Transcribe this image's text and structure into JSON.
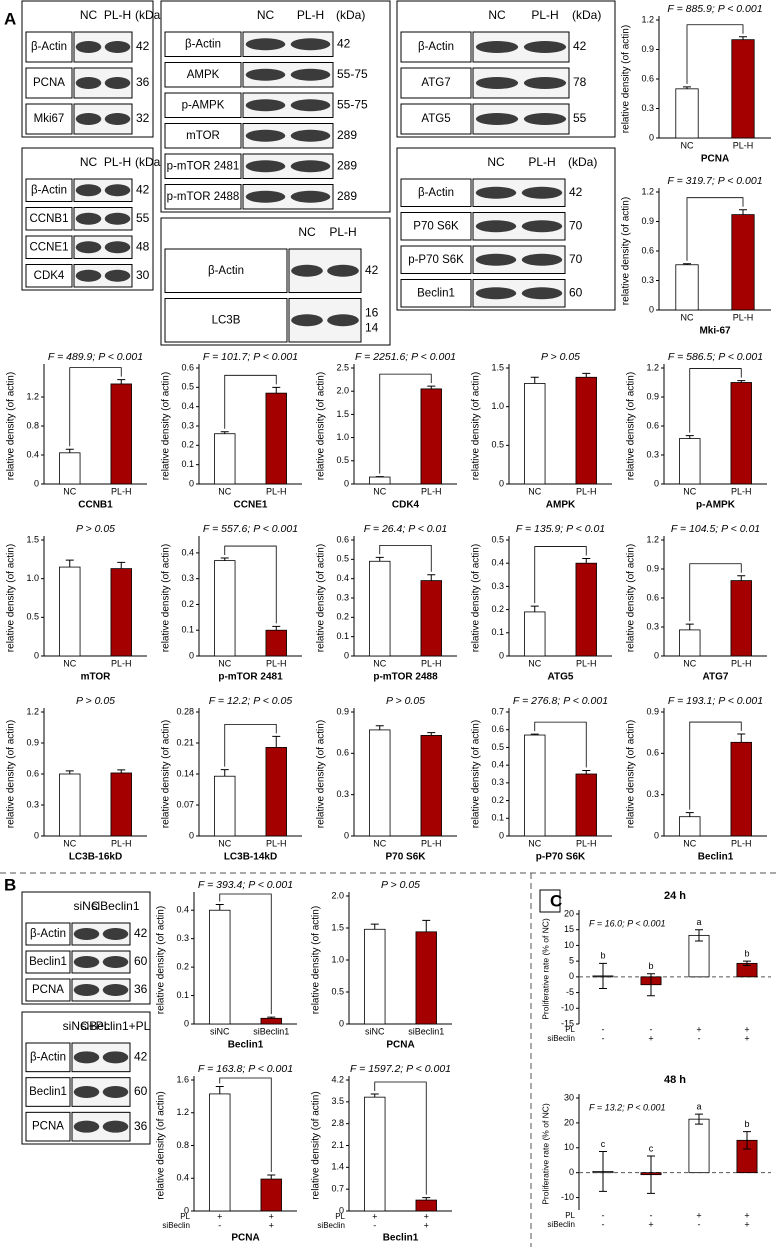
{
  "panels": [
    "A",
    "B",
    "C"
  ],
  "blots": [
    {
      "lanes": [
        "NC",
        "PL-H"
      ],
      "unit": "(kDa)",
      "rows": [
        {
          "label": "β-Actin",
          "kda": "42"
        },
        {
          "label": "PCNA",
          "kda": "36"
        },
        {
          "label": "Mki67",
          "kda": "32"
        }
      ]
    },
    {
      "lanes": [
        "NC",
        "PL-H"
      ],
      "unit": "(kDa)",
      "rows": [
        {
          "label": "β-Actin",
          "kda": "42"
        },
        {
          "label": "CCNB1",
          "kda": "55"
        },
        {
          "label": "CCNE1",
          "kda": "48"
        },
        {
          "label": "CDK4",
          "kda": "30"
        }
      ]
    },
    {
      "lanes": [
        "NC",
        "PL-H"
      ],
      "unit": "(kDa)",
      "rows": [
        {
          "label": "β-Actin",
          "kda": "42"
        },
        {
          "label": "AMPK",
          "kda": "55-75"
        },
        {
          "label": "p-AMPK",
          "kda": "55-75"
        },
        {
          "label": "mTOR",
          "kda": "289"
        },
        {
          "label": "p-mTOR 2481",
          "kda": "289"
        },
        {
          "label": "p-mTOR 2488",
          "kda": "289"
        }
      ]
    },
    {
      "lanes": [
        "NC",
        "PL-H"
      ],
      "rows": [
        {
          "label": "β-Actin",
          "kda": "42"
        },
        {
          "label": "LC3B",
          "kda": "16",
          "kda2": "14"
        }
      ]
    },
    {
      "lanes": [
        "NC",
        "PL-H"
      ],
      "unit": "(kDa)",
      "rows": [
        {
          "label": "β-Actin",
          "kda": "42"
        },
        {
          "label": "ATG7",
          "kda": "78"
        },
        {
          "label": "ATG5",
          "kda": "55"
        }
      ]
    },
    {
      "lanes": [
        "NC",
        "PL-H"
      ],
      "unit": "(kDa)",
      "rows": [
        {
          "label": "β-Actin",
          "kda": "42"
        },
        {
          "label": "P70 S6K",
          "kda": "70"
        },
        {
          "label": "p-P70 S6K",
          "kda": "70"
        },
        {
          "label": "Beclin1",
          "kda": "60"
        }
      ]
    },
    {
      "lanes": [
        "siNC",
        "siBeclin1"
      ],
      "rows": [
        {
          "label": "β-Actin",
          "kda": "42"
        },
        {
          "label": "Beclin1",
          "kda": "60"
        },
        {
          "label": "PCNA",
          "kda": "36"
        }
      ]
    },
    {
      "lanes": [
        "siNC+PL",
        "siBeclin1+PL"
      ],
      "rows": [
        {
          "label": "β-Actin",
          "kda": "42"
        },
        {
          "label": "Beclin1",
          "kda": "60"
        },
        {
          "label": "PCNA",
          "kda": "36"
        }
      ]
    }
  ],
  "chart_data": [
    {
      "type": "bar",
      "annotation": "F = 885.9; P < 0.001",
      "xlabel": "PCNA",
      "ylabel": "relative density (of actin)",
      "categories": [
        "NC",
        "PL-H"
      ],
      "values": [
        0.5,
        1.0
      ],
      "errors": [
        0.02,
        0.03
      ],
      "colors": [
        "#ffffff",
        "#a50000"
      ],
      "ylim": [
        0,
        1.2
      ],
      "yticks": [
        0,
        0.3,
        0.6,
        0.9,
        1.2
      ],
      "bracket": true
    },
    {
      "type": "bar",
      "annotation": "F = 319.7; P < 0.001",
      "xlabel": "Mki-67",
      "ylabel": "relative density (of actin)",
      "categories": [
        "NC",
        "PL-H"
      ],
      "values": [
        0.46,
        0.97
      ],
      "errors": [
        0.01,
        0.05
      ],
      "colors": [
        "#ffffff",
        "#a50000"
      ],
      "ylim": [
        0,
        1.2
      ],
      "yticks": [
        0,
        0.3,
        0.6,
        0.9,
        1.2
      ],
      "bracket": true
    },
    {
      "type": "bar",
      "annotation": "F = 489.9; P < 0.001",
      "xlabel": "CCNB1",
      "ylabel": "relative density (of actin)",
      "categories": [
        "NC",
        "PL-H"
      ],
      "values": [
        0.43,
        1.38
      ],
      "errors": [
        0.05,
        0.06
      ],
      "colors": [
        "#ffffff",
        "#a50000"
      ],
      "ylim": [
        0,
        1.6
      ],
      "yticks": [
        0,
        0.4,
        0.8,
        1.2
      ],
      "bracket": true
    },
    {
      "type": "bar",
      "annotation": "F = 101.7; P < 0.001",
      "xlabel": "CCNE1",
      "ylabel": "relative density (of actin)",
      "categories": [
        "NC",
        "PL-H"
      ],
      "values": [
        0.26,
        0.47
      ],
      "errors": [
        0.01,
        0.03
      ],
      "colors": [
        "#ffffff",
        "#a50000"
      ],
      "ylim": [
        0,
        0.6
      ],
      "yticks": [
        0,
        0.1,
        0.2,
        0.3,
        0.4,
        0.5,
        0.6
      ],
      "bracket": true
    },
    {
      "type": "bar",
      "annotation": "F = 2251.6; P < 0.001",
      "xlabel": "CDK4",
      "ylabel": "relative density (of actin)",
      "categories": [
        "NC",
        "PL-H"
      ],
      "values": [
        0.15,
        2.05
      ],
      "errors": [
        0.01,
        0.06
      ],
      "colors": [
        "#ffffff",
        "#a50000"
      ],
      "ylim": [
        0,
        2.5
      ],
      "yticks": [
        0,
        0.5,
        {
          "value": 1,
          "label": "1.0"
        },
        1.5,
        {
          "value": 2,
          "label": "2.0"
        },
        2.5
      ],
      "bracket": true
    },
    {
      "type": "bar",
      "annotation": "P > 0.05",
      "xlabel": "AMPK",
      "ylabel": "relative density (of actin)",
      "categories": [
        "NC",
        "PL-H"
      ],
      "values": [
        1.3,
        1.38
      ],
      "errors": [
        0.08,
        0.05
      ],
      "colors": [
        "#ffffff",
        "#a50000"
      ],
      "ylim": [
        0,
        1.5
      ],
      "yticks": [
        0,
        0.5,
        {
          "value": 1,
          "label": "1.0"
        },
        1.5
      ],
      "bracket": false
    },
    {
      "type": "bar",
      "annotation": "F = 586.5; P < 0.001",
      "xlabel": "p-AMPK",
      "ylabel": "relative density (of actin)",
      "categories": [
        "NC",
        "PL-H"
      ],
      "values": [
        0.47,
        1.05
      ],
      "errors": [
        0.03,
        0.02
      ],
      "colors": [
        "#ffffff",
        "#a50000"
      ],
      "ylim": [
        0,
        1.2
      ],
      "yticks": [
        0,
        0.3,
        0.6,
        0.9,
        1.2
      ],
      "bracket": true
    },
    {
      "type": "bar",
      "annotation": "P > 0.05",
      "xlabel": "mTOR",
      "ylabel": "relative density (of actin)",
      "categories": [
        "NC",
        "PL-H"
      ],
      "values": [
        1.15,
        1.13
      ],
      "errors": [
        0.09,
        0.08
      ],
      "colors": [
        "#ffffff",
        "#a50000"
      ],
      "ylim": [
        0,
        1.5
      ],
      "yticks": [
        0,
        0.5,
        {
          "value": 1,
          "label": "1.0"
        },
        1.5
      ],
      "bracket": false
    },
    {
      "type": "bar",
      "annotation": "F = 557.6; P < 0.001",
      "xlabel": "p-mTOR 2481",
      "ylabel": "relative density (of actin)",
      "categories": [
        "NC",
        "PL-H"
      ],
      "values": [
        0.37,
        0.1
      ],
      "errors": [
        0.01,
        0.015
      ],
      "colors": [
        "#ffffff",
        "#a50000"
      ],
      "ylim": [
        0,
        0.45
      ],
      "yticks": [
        0,
        0.1,
        0.2,
        0.3,
        0.4
      ],
      "bracket": true
    },
    {
      "type": "bar",
      "annotation": "F = 26.4; P < 0.01",
      "xlabel": "p-mTOR 2488",
      "ylabel": "relative density (of actin)",
      "categories": [
        "NC",
        "PL-H"
      ],
      "values": [
        0.49,
        0.39
      ],
      "errors": [
        0.02,
        0.03
      ],
      "colors": [
        "#ffffff",
        "#a50000"
      ],
      "ylim": [
        0,
        0.6
      ],
      "yticks": [
        0,
        0.1,
        0.2,
        0.3,
        0.4,
        0.5,
        0.6
      ],
      "bracket": true
    },
    {
      "type": "bar",
      "annotation": "F = 135.9; P < 0.01",
      "xlabel": "ATG5",
      "ylabel": "relative density (of actin)",
      "categories": [
        "NC",
        "PL-H"
      ],
      "values": [
        0.19,
        0.4
      ],
      "errors": [
        0.025,
        0.02
      ],
      "colors": [
        "#ffffff",
        "#a50000"
      ],
      "ylim": [
        0,
        0.5
      ],
      "yticks": [
        0,
        0.1,
        0.2,
        0.3,
        0.4,
        0.5
      ],
      "bracket": true
    },
    {
      "type": "bar",
      "annotation": "F = 104.5; P < 0.01",
      "xlabel": "ATG7",
      "ylabel": "relative density (of actin)",
      "categories": [
        "NC",
        "PL-H"
      ],
      "values": [
        0.27,
        0.78
      ],
      "errors": [
        0.06,
        0.05
      ],
      "colors": [
        "#ffffff",
        "#a50000"
      ],
      "ylim": [
        0,
        1.2
      ],
      "yticks": [
        0,
        0.3,
        0.6,
        0.9,
        1.2
      ],
      "bracket": true
    },
    {
      "type": "bar",
      "annotation": "P > 0.05",
      "xlabel": "LC3B-16kD",
      "ylabel": "relative density (of actin)",
      "categories": [
        "NC",
        "PL-H"
      ],
      "values": [
        0.6,
        0.61
      ],
      "errors": [
        0.03,
        0.03
      ],
      "colors": [
        "#ffffff",
        "#a50000"
      ],
      "ylim": [
        0,
        1.2
      ],
      "yticks": [
        0,
        0.3,
        0.6,
        0.9,
        1.2
      ],
      "bracket": false
    },
    {
      "type": "bar",
      "annotation": "F = 12.2; P < 0.05",
      "xlabel": "LC3B-14kD",
      "ylabel": "relative density (of actin)",
      "categories": [
        "NC",
        "PL-H"
      ],
      "values": [
        0.135,
        0.2
      ],
      "errors": [
        0.015,
        0.025
      ],
      "colors": [
        "#ffffff",
        "#a50000"
      ],
      "ylim": [
        0,
        0.28
      ],
      "yticks": [
        0,
        0.07,
        0.14,
        0.21,
        0.28
      ],
      "bracket": true
    },
    {
      "type": "bar",
      "annotation": "P > 0.05",
      "xlabel": "P70 S6K",
      "ylabel": "relative density (of actin)",
      "categories": [
        "NC",
        "PL-H"
      ],
      "values": [
        0.77,
        0.73
      ],
      "errors": [
        0.03,
        0.02
      ],
      "colors": [
        "#ffffff",
        "#a50000"
      ],
      "ylim": [
        0,
        0.9
      ],
      "yticks": [
        0,
        0.3,
        0.6,
        0.9
      ],
      "bracket": false
    },
    {
      "type": "bar",
      "annotation": "F = 276.8; P < 0.001",
      "xlabel": "p-P70 S6K",
      "ylabel": "relative density (of actin)",
      "categories": [
        "NC",
        "PL-H"
      ],
      "values": [
        0.57,
        0.35
      ],
      "errors": [
        0.005,
        0.02
      ],
      "colors": [
        "#ffffff",
        "#a50000"
      ],
      "ylim": [
        0,
        0.7
      ],
      "yticks": [
        0,
        0.1,
        0.2,
        0.3,
        0.4,
        0.5,
        0.6,
        0.7
      ],
      "bracket": true
    },
    {
      "type": "bar",
      "annotation": "F = 193.1; P < 0.001",
      "xlabel": "Beclin1",
      "ylabel": "relative density (of actin)",
      "categories": [
        "NC",
        "PL-H"
      ],
      "values": [
        0.14,
        0.68
      ],
      "errors": [
        0.03,
        0.06
      ],
      "colors": [
        "#ffffff",
        "#a50000"
      ],
      "ylim": [
        0,
        0.9
      ],
      "yticks": [
        0,
        0.3,
        0.6,
        0.9
      ],
      "bracket": true
    },
    {
      "type": "bar",
      "annotation": "F = 393.4; P < 0.001",
      "xlabel": "Beclin1",
      "ylabel": "relative density (of actin)",
      "categories": [
        "siNC",
        "siBeclin1"
      ],
      "values": [
        0.4,
        0.02
      ],
      "errors": [
        0.02,
        0.004
      ],
      "colors": [
        "#ffffff",
        "#a50000"
      ],
      "ylim": [
        0,
        0.45
      ],
      "yticks": [
        0,
        0.1,
        0.2,
        0.3,
        0.4
      ],
      "bracket": true
    },
    {
      "type": "bar",
      "annotation": "P > 0.05",
      "xlabel": "PCNA",
      "ylabel": "relative density (of actin)",
      "categories": [
        "siNC",
        "siBeclin1"
      ],
      "values": [
        1.48,
        1.44
      ],
      "errors": [
        0.08,
        0.18
      ],
      "colors": [
        "#ffffff",
        "#a50000"
      ],
      "ylim": [
        0,
        2.0
      ],
      "yticks": [
        0,
        0.5,
        {
          "value": 1,
          "label": "1.0"
        },
        1.5,
        {
          "value": 2,
          "label": "2.0"
        }
      ],
      "bracket": false
    },
    {
      "type": "bar",
      "annotation": "F = 163.8; P < 0.001",
      "xlabel": "PCNA",
      "ylabel": "relative density (of actin)",
      "row_labels": [
        {
          "name": "PL",
          "marks": [
            "+",
            "+"
          ]
        },
        {
          "name": "siBeclin",
          "marks": [
            "-",
            "+"
          ]
        }
      ],
      "values": [
        1.43,
        0.39
      ],
      "errors": [
        0.09,
        0.05
      ],
      "colors": [
        "#ffffff",
        "#a50000"
      ],
      "ylim": [
        0,
        1.6
      ],
      "yticks": [
        0,
        0.4,
        0.8,
        1.2,
        1.6
      ],
      "bracket": true
    },
    {
      "type": "bar",
      "annotation": "F = 1597.2; P < 0.001",
      "xlabel": "Beclin1",
      "ylabel": "relative density (of actin)",
      "row_labels": [
        {
          "name": "PL",
          "marks": [
            "+",
            "+"
          ]
        },
        {
          "name": "siBeclin",
          "marks": [
            "-",
            "+"
          ]
        }
      ],
      "values": [
        3.65,
        0.35
      ],
      "errors": [
        0.1,
        0.08
      ],
      "colors": [
        "#ffffff",
        "#a50000"
      ],
      "ylim": [
        0,
        4.2
      ],
      "yticks": [
        0,
        0.7,
        1.4,
        2.1,
        2.8,
        3.5,
        4.2
      ],
      "bracket": true
    },
    {
      "type": "bar",
      "title": "24 h",
      "annotation": "F = 16.0; P < 0.001",
      "ylabel": "Proliferative rate (% of NC)",
      "row_labels": [
        {
          "name": "PL",
          "marks": [
            "-",
            "-",
            "+",
            "+"
          ]
        },
        {
          "name": "siBeclin",
          "marks": [
            "-",
            "+",
            "-",
            "+"
          ]
        }
      ],
      "values": [
        0.3,
        -2.5,
        13.2,
        4.3
      ],
      "errors": [
        4,
        3.5,
        1.8,
        0.7
      ],
      "letters": [
        "b",
        "b",
        "a",
        "b"
      ],
      "colors": [
        "#ffffff",
        "#a50000",
        "#ffffff",
        "#a50000"
      ],
      "ylim": [
        -15,
        20
      ],
      "yticks": [
        -15,
        -10,
        -5,
        0,
        5,
        10,
        15,
        20
      ],
      "zero_line": true,
      "bracket": false
    },
    {
      "type": "bar",
      "title": "48 h",
      "annotation": "F = 13.2; P < 0.001",
      "ylabel": "Proliferative rate (% of NC)",
      "row_labels": [
        {
          "name": "PL",
          "marks": [
            "-",
            "-",
            "+",
            "+"
          ]
        },
        {
          "name": "siBeclin",
          "marks": [
            "-",
            "+",
            "-",
            "+"
          ]
        }
      ],
      "values": [
        0.5,
        -0.8,
        21.5,
        13
      ],
      "errors": [
        8,
        7.5,
        2,
        3.5
      ],
      "letters": [
        "c",
        "c",
        "a",
        "b"
      ],
      "colors": [
        "#ffffff",
        "#a50000",
        "#ffffff",
        "#a50000"
      ],
      "ylim": [
        -15,
        30
      ],
      "yticks": [
        -10,
        0,
        10,
        20,
        30
      ],
      "zero_line": true,
      "bracket": false
    }
  ]
}
